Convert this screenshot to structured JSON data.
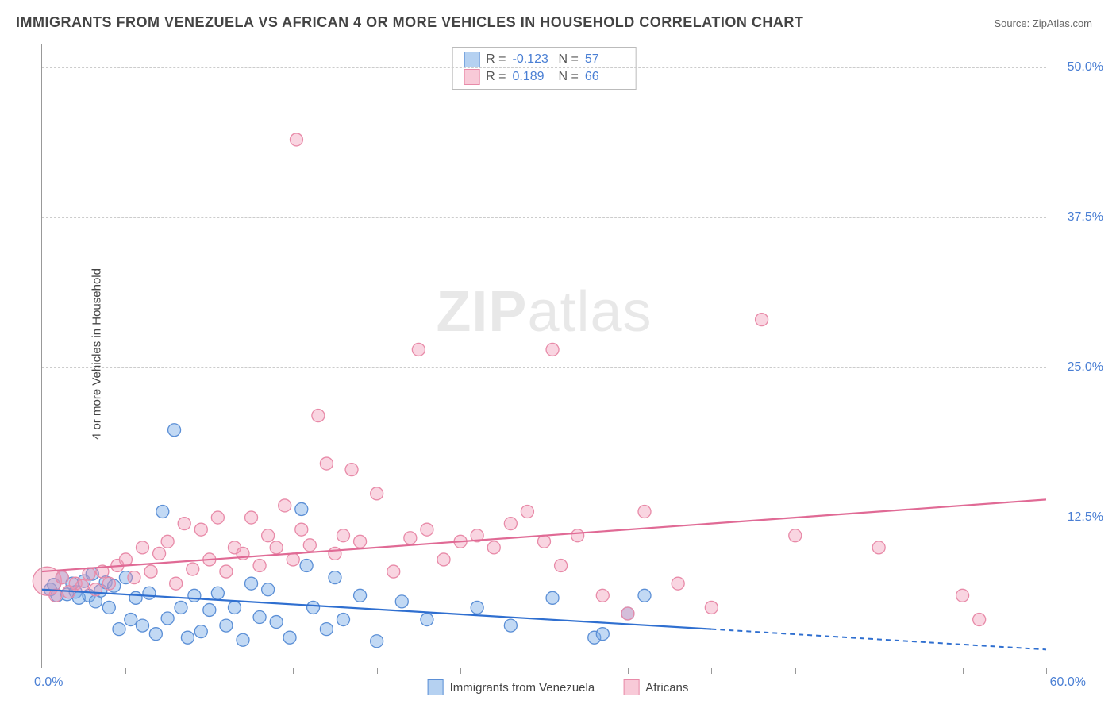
{
  "title": "IMMIGRANTS FROM VENEZUELA VS AFRICAN 4 OR MORE VEHICLES IN HOUSEHOLD CORRELATION CHART",
  "source": "Source: ZipAtlas.com",
  "y_axis_label": "4 or more Vehicles in Household",
  "watermark_bold": "ZIP",
  "watermark_light": "atlas",
  "chart": {
    "type": "scatter",
    "xlim": [
      0,
      60
    ],
    "ylim": [
      0,
      52
    ],
    "x_origin_label": "0.0%",
    "x_max_label": "60.0%",
    "y_ticks": [
      {
        "v": 12.5,
        "label": "12.5%"
      },
      {
        "v": 25.0,
        "label": "25.0%"
      },
      {
        "v": 37.5,
        "label": "37.5%"
      },
      {
        "v": 50.0,
        "label": "50.0%"
      }
    ],
    "x_tick_step": 5,
    "grid_color": "#cccccc",
    "background_color": "#ffffff",
    "series": [
      {
        "name": "Immigrants from Venezuela",
        "fill": "rgba(120,170,230,0.45)",
        "stroke": "#5b8fd6",
        "line_color": "#2f6fd0",
        "marker_radius": 8,
        "r_value": "-0.123",
        "n_value": "57",
        "trend": {
          "x0": 0,
          "y0": 6.5,
          "x1_solid": 40,
          "y1_solid": 3.2,
          "x1_dash": 60,
          "y1_dash": 1.5
        },
        "points": [
          [
            0.5,
            6.5
          ],
          [
            0.7,
            6.9
          ],
          [
            0.9,
            6.0
          ],
          [
            1.2,
            7.5
          ],
          [
            1.5,
            6.1
          ],
          [
            1.8,
            7.0
          ],
          [
            2.0,
            6.3
          ],
          [
            2.2,
            5.8
          ],
          [
            2.5,
            7.2
          ],
          [
            2.8,
            6.0
          ],
          [
            3.0,
            7.8
          ],
          [
            3.2,
            5.5
          ],
          [
            3.5,
            6.4
          ],
          [
            3.8,
            7.1
          ],
          [
            4.0,
            5.0
          ],
          [
            4.3,
            6.8
          ],
          [
            4.6,
            3.2
          ],
          [
            5.0,
            7.5
          ],
          [
            5.3,
            4.0
          ],
          [
            5.6,
            5.8
          ],
          [
            6.0,
            3.5
          ],
          [
            6.4,
            6.2
          ],
          [
            6.8,
            2.8
          ],
          [
            7.2,
            13.0
          ],
          [
            7.5,
            4.1
          ],
          [
            7.9,
            19.8
          ],
          [
            8.3,
            5.0
          ],
          [
            8.7,
            2.5
          ],
          [
            9.1,
            6.0
          ],
          [
            9.5,
            3.0
          ],
          [
            10.0,
            4.8
          ],
          [
            10.5,
            6.2
          ],
          [
            11.0,
            3.5
          ],
          [
            11.5,
            5.0
          ],
          [
            12.0,
            2.3
          ],
          [
            12.5,
            7.0
          ],
          [
            13.0,
            4.2
          ],
          [
            13.5,
            6.5
          ],
          [
            14.0,
            3.8
          ],
          [
            14.8,
            2.5
          ],
          [
            15.5,
            13.2
          ],
          [
            15.8,
            8.5
          ],
          [
            16.2,
            5.0
          ],
          [
            17.0,
            3.2
          ],
          [
            17.5,
            7.5
          ],
          [
            18.0,
            4.0
          ],
          [
            19.0,
            6.0
          ],
          [
            20.0,
            2.2
          ],
          [
            21.5,
            5.5
          ],
          [
            23.0,
            4.0
          ],
          [
            26.0,
            5.0
          ],
          [
            28.0,
            3.5
          ],
          [
            30.5,
            5.8
          ],
          [
            33.0,
            2.5
          ],
          [
            33.5,
            2.8
          ],
          [
            35.0,
            4.5
          ],
          [
            36.0,
            6.0
          ]
        ]
      },
      {
        "name": "Africans",
        "fill": "rgba(240,150,180,0.40)",
        "stroke": "#e88aa8",
        "line_color": "#e06a95",
        "marker_radius": 8,
        "r_value": "0.189",
        "n_value": "66",
        "trend": {
          "x0": 0,
          "y0": 8.0,
          "x1_solid": 60,
          "y1_solid": 14.0,
          "x1_dash": 60,
          "y1_dash": 14.0
        },
        "points": [
          [
            0.3,
            7.2,
            18
          ],
          [
            0.8,
            6.0
          ],
          [
            1.2,
            7.5
          ],
          [
            1.6,
            6.3
          ],
          [
            2.0,
            7.0
          ],
          [
            2.4,
            6.8
          ],
          [
            2.8,
            7.8
          ],
          [
            3.2,
            6.5
          ],
          [
            3.6,
            8.0
          ],
          [
            4.0,
            7.0
          ],
          [
            4.5,
            8.5
          ],
          [
            5.0,
            9.0
          ],
          [
            5.5,
            7.5
          ],
          [
            6.0,
            10.0
          ],
          [
            6.5,
            8.0
          ],
          [
            7.0,
            9.5
          ],
          [
            7.5,
            10.5
          ],
          [
            8.0,
            7.0
          ],
          [
            8.5,
            12.0
          ],
          [
            9.0,
            8.2
          ],
          [
            9.5,
            11.5
          ],
          [
            10.0,
            9.0
          ],
          [
            10.5,
            12.5
          ],
          [
            11.0,
            8.0
          ],
          [
            11.5,
            10.0
          ],
          [
            12.0,
            9.5
          ],
          [
            12.5,
            12.5
          ],
          [
            13.0,
            8.5
          ],
          [
            13.5,
            11.0
          ],
          [
            14.0,
            10.0
          ],
          [
            14.5,
            13.5
          ],
          [
            15.0,
            9.0
          ],
          [
            15.2,
            44.0
          ],
          [
            15.5,
            11.5
          ],
          [
            16.0,
            10.2
          ],
          [
            16.5,
            21.0
          ],
          [
            17.0,
            17.0
          ],
          [
            17.5,
            9.5
          ],
          [
            18.0,
            11.0
          ],
          [
            18.5,
            16.5
          ],
          [
            19.0,
            10.5
          ],
          [
            20.0,
            14.5
          ],
          [
            21.0,
            8.0
          ],
          [
            22.0,
            10.8
          ],
          [
            22.5,
            26.5
          ],
          [
            23.0,
            11.5
          ],
          [
            24.0,
            9.0
          ],
          [
            25.0,
            10.5
          ],
          [
            26.0,
            11.0
          ],
          [
            27.0,
            10.0
          ],
          [
            28.0,
            12.0
          ],
          [
            29.0,
            13.0
          ],
          [
            30.0,
            10.5
          ],
          [
            30.5,
            26.5
          ],
          [
            31.0,
            8.5
          ],
          [
            32.0,
            11.0
          ],
          [
            33.5,
            6.0
          ],
          [
            35.0,
            4.5
          ],
          [
            36.0,
            13.0
          ],
          [
            38.0,
            7.0
          ],
          [
            40.0,
            5.0
          ],
          [
            43.0,
            29.0
          ],
          [
            45.0,
            11.0
          ],
          [
            50.0,
            10.0
          ],
          [
            55.0,
            6.0
          ],
          [
            56.0,
            4.0
          ]
        ]
      }
    ]
  },
  "legend_box": {
    "r_label": "R =",
    "n_label": "N ="
  },
  "bottom_legend": {
    "label1": "Immigrants from Venezuela",
    "label2": "Africans"
  },
  "colors": {
    "blue_swatch_fill": "rgba(150,190,235,0.7)",
    "blue_swatch_border": "#5b8fd6",
    "pink_swatch_fill": "rgba(245,180,200,0.7)",
    "pink_swatch_border": "#e88aa8",
    "axis_text": "#4a7fd4"
  }
}
